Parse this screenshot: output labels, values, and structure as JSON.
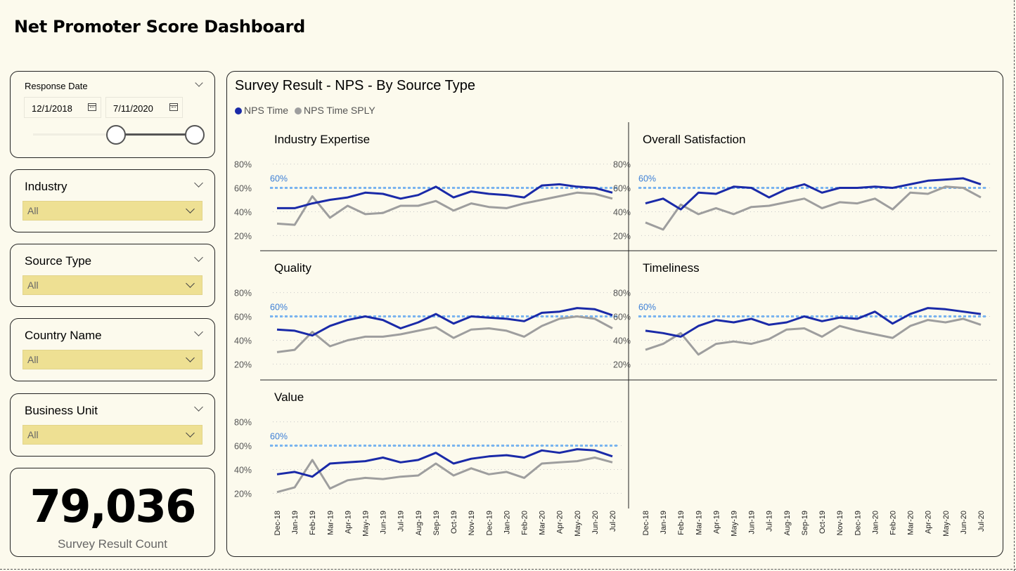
{
  "page": {
    "title": "Net Promoter Score Dashboard"
  },
  "slicers": {
    "response_date": {
      "title": "Response Date",
      "start": "12/1/2018",
      "end": "7/11/2020",
      "range_fraction": [
        0.79,
        1.0
      ]
    },
    "industry": {
      "title": "Industry",
      "value": "All"
    },
    "source_type": {
      "title": "Source Type",
      "value": "All"
    },
    "country": {
      "title": "Country Name",
      "value": "All"
    },
    "business_unit": {
      "title": "Business Unit",
      "value": "All"
    }
  },
  "kpi": {
    "value": "79,036",
    "label": "Survey Result Count"
  },
  "colors": {
    "series1": "#1a2aa8",
    "series2": "#9e9e9e",
    "reference": "#79b4f0",
    "gridline": "#c8c8c8"
  },
  "chart_data": {
    "type": "line",
    "title": "Survey Result - NPS - By Source Type",
    "legend": [
      "NPS Time",
      "NPS Time SPLY"
    ],
    "legend_position": "top-left",
    "x": [
      "Dec-18",
      "Jan-19",
      "Feb-19",
      "Mar-19",
      "Apr-19",
      "May-19",
      "Jun-19",
      "Jul-19",
      "Aug-19",
      "Sep-19",
      "Oct-19",
      "Nov-19",
      "Dec-19",
      "Jan-20",
      "Feb-20",
      "Mar-20",
      "Apr-20",
      "May-20",
      "Jun-20",
      "Jul-20"
    ],
    "ylim": [
      0.12,
      0.88
    ],
    "yticks": [
      0.2,
      0.4,
      0.6,
      0.8
    ],
    "ytick_labels": [
      "20%",
      "40%",
      "60%",
      "80%"
    ],
    "reference_line": {
      "value": 0.6,
      "label": "60%"
    },
    "grid": true,
    "panels": [
      {
        "title": "Industry Expertise",
        "series": [
          {
            "name": "NPS Time",
            "values": [
              0.43,
              0.43,
              0.47,
              0.5,
              0.52,
              0.56,
              0.55,
              0.51,
              0.54,
              0.61,
              0.52,
              0.57,
              0.55,
              0.54,
              0.52,
              0.62,
              0.63,
              0.61,
              0.6,
              0.56
            ]
          },
          {
            "name": "NPS Time SPLY",
            "values": [
              0.3,
              0.29,
              0.53,
              0.35,
              0.45,
              0.38,
              0.39,
              0.45,
              0.45,
              0.49,
              0.41,
              0.47,
              0.44,
              0.43,
              0.47,
              0.5,
              0.53,
              0.56,
              0.55,
              0.51
            ]
          }
        ]
      },
      {
        "title": "Overall Satisfaction",
        "series": [
          {
            "name": "NPS Time",
            "values": [
              0.47,
              0.51,
              0.42,
              0.56,
              0.55,
              0.61,
              0.6,
              0.52,
              0.59,
              0.63,
              0.56,
              0.6,
              0.6,
              0.61,
              0.6,
              0.63,
              0.66,
              0.67,
              0.68,
              0.63
            ]
          },
          {
            "name": "NPS Time SPLY",
            "values": [
              0.31,
              0.25,
              0.46,
              0.38,
              0.43,
              0.38,
              0.44,
              0.45,
              0.48,
              0.51,
              0.43,
              0.48,
              0.47,
              0.51,
              0.42,
              0.56,
              0.55,
              0.61,
              0.6,
              0.52
            ]
          }
        ]
      },
      {
        "title": "Quality",
        "series": [
          {
            "name": "NPS Time",
            "values": [
              0.49,
              0.48,
              0.44,
              0.52,
              0.57,
              0.6,
              0.57,
              0.5,
              0.55,
              0.62,
              0.54,
              0.6,
              0.59,
              0.58,
              0.56,
              0.63,
              0.64,
              0.67,
              0.66,
              0.61
            ]
          },
          {
            "name": "NPS Time SPLY",
            "values": [
              0.3,
              0.32,
              0.47,
              0.35,
              0.4,
              0.43,
              0.43,
              0.45,
              0.48,
              0.51,
              0.42,
              0.49,
              0.5,
              0.48,
              0.43,
              0.52,
              0.58,
              0.6,
              0.58,
              0.5
            ]
          }
        ]
      },
      {
        "title": "Timeliness",
        "series": [
          {
            "name": "NPS Time",
            "values": [
              0.48,
              0.46,
              0.43,
              0.52,
              0.57,
              0.55,
              0.58,
              0.53,
              0.55,
              0.6,
              0.56,
              0.59,
              0.58,
              0.64,
              0.54,
              0.62,
              0.67,
              0.66,
              0.64,
              0.62
            ]
          },
          {
            "name": "NPS Time SPLY",
            "values": [
              0.32,
              0.37,
              0.46,
              0.28,
              0.37,
              0.39,
              0.37,
              0.41,
              0.49,
              0.5,
              0.43,
              0.52,
              0.48,
              0.45,
              0.42,
              0.52,
              0.57,
              0.55,
              0.58,
              0.53
            ]
          }
        ]
      },
      {
        "title": "Value",
        "series": [
          {
            "name": "NPS Time",
            "values": [
              0.36,
              0.38,
              0.34,
              0.45,
              0.46,
              0.47,
              0.5,
              0.46,
              0.48,
              0.54,
              0.45,
              0.49,
              0.51,
              0.52,
              0.5,
              0.56,
              0.54,
              0.57,
              0.56,
              0.51
            ]
          },
          {
            "name": "NPS Time SPLY",
            "values": [
              0.21,
              0.25,
              0.48,
              0.24,
              0.31,
              0.33,
              0.32,
              0.34,
              0.35,
              0.45,
              0.35,
              0.41,
              0.36,
              0.38,
              0.33,
              0.45,
              0.46,
              0.47,
              0.5,
              0.46
            ]
          }
        ]
      }
    ]
  }
}
